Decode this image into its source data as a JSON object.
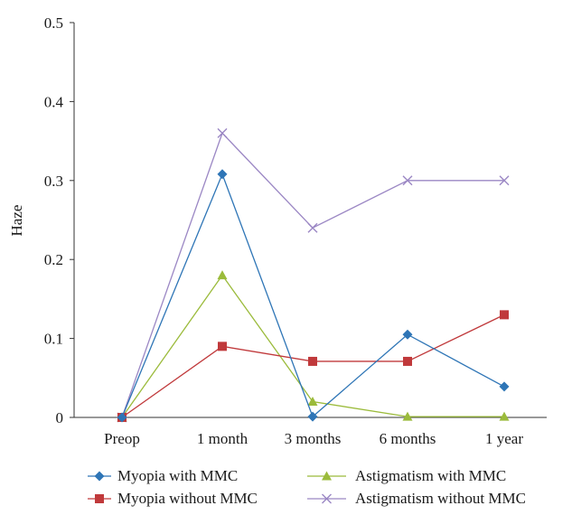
{
  "chart_data": {
    "type": "line",
    "title": "",
    "xlabel": "",
    "ylabel": "Haze",
    "categories": [
      "Preop",
      "1 month",
      "3 months",
      "6 months",
      "1 year"
    ],
    "ylim": [
      0,
      0.5
    ],
    "yticks": [
      "0",
      "0.1",
      "0.2",
      "0.3",
      "0.4",
      "0.5"
    ],
    "grid": false,
    "legend_position": "bottom",
    "series": [
      {
        "name": "Myopia with MMC",
        "color": "#2e75b6",
        "marker": "diamond",
        "values": [
          0,
          0.308,
          0.001,
          0.105,
          0.039
        ]
      },
      {
        "name": "Myopia without MMC",
        "color": "#c0393b",
        "marker": "square",
        "values": [
          0,
          0.09,
          0.071,
          0.071,
          0.13
        ]
      },
      {
        "name": "Astigmatism with MMC",
        "color": "#9bbb3b",
        "marker": "triangle",
        "values": [
          0,
          0.18,
          0.02,
          0.001,
          0.001
        ]
      },
      {
        "name": "Astigmatism without MMC",
        "color": "#9b87c4",
        "marker": "cross",
        "values": [
          0,
          0.36,
          0.24,
          0.3,
          0.3
        ]
      }
    ]
  }
}
